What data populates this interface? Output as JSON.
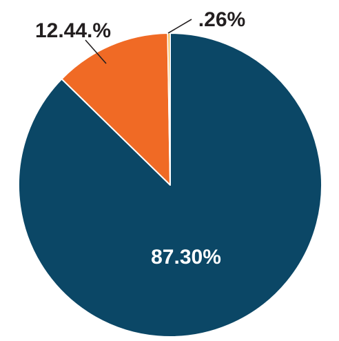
{
  "chart_data": {
    "type": "pie",
    "title": "",
    "start_angle_deg": 0,
    "direction": "clockwise",
    "slices": [
      {
        "label": "87.30%",
        "value": 87.3,
        "color": "#0b4766",
        "label_color": "#ffffff"
      },
      {
        "label": "12.44.%",
        "value": 12.44,
        "color": "#f06a25",
        "label_color": "#231f20"
      },
      {
        "label": ".26%",
        "value": 0.26,
        "color": "#f3a11b",
        "label_color": "#231f20"
      }
    ],
    "legend": "none"
  }
}
